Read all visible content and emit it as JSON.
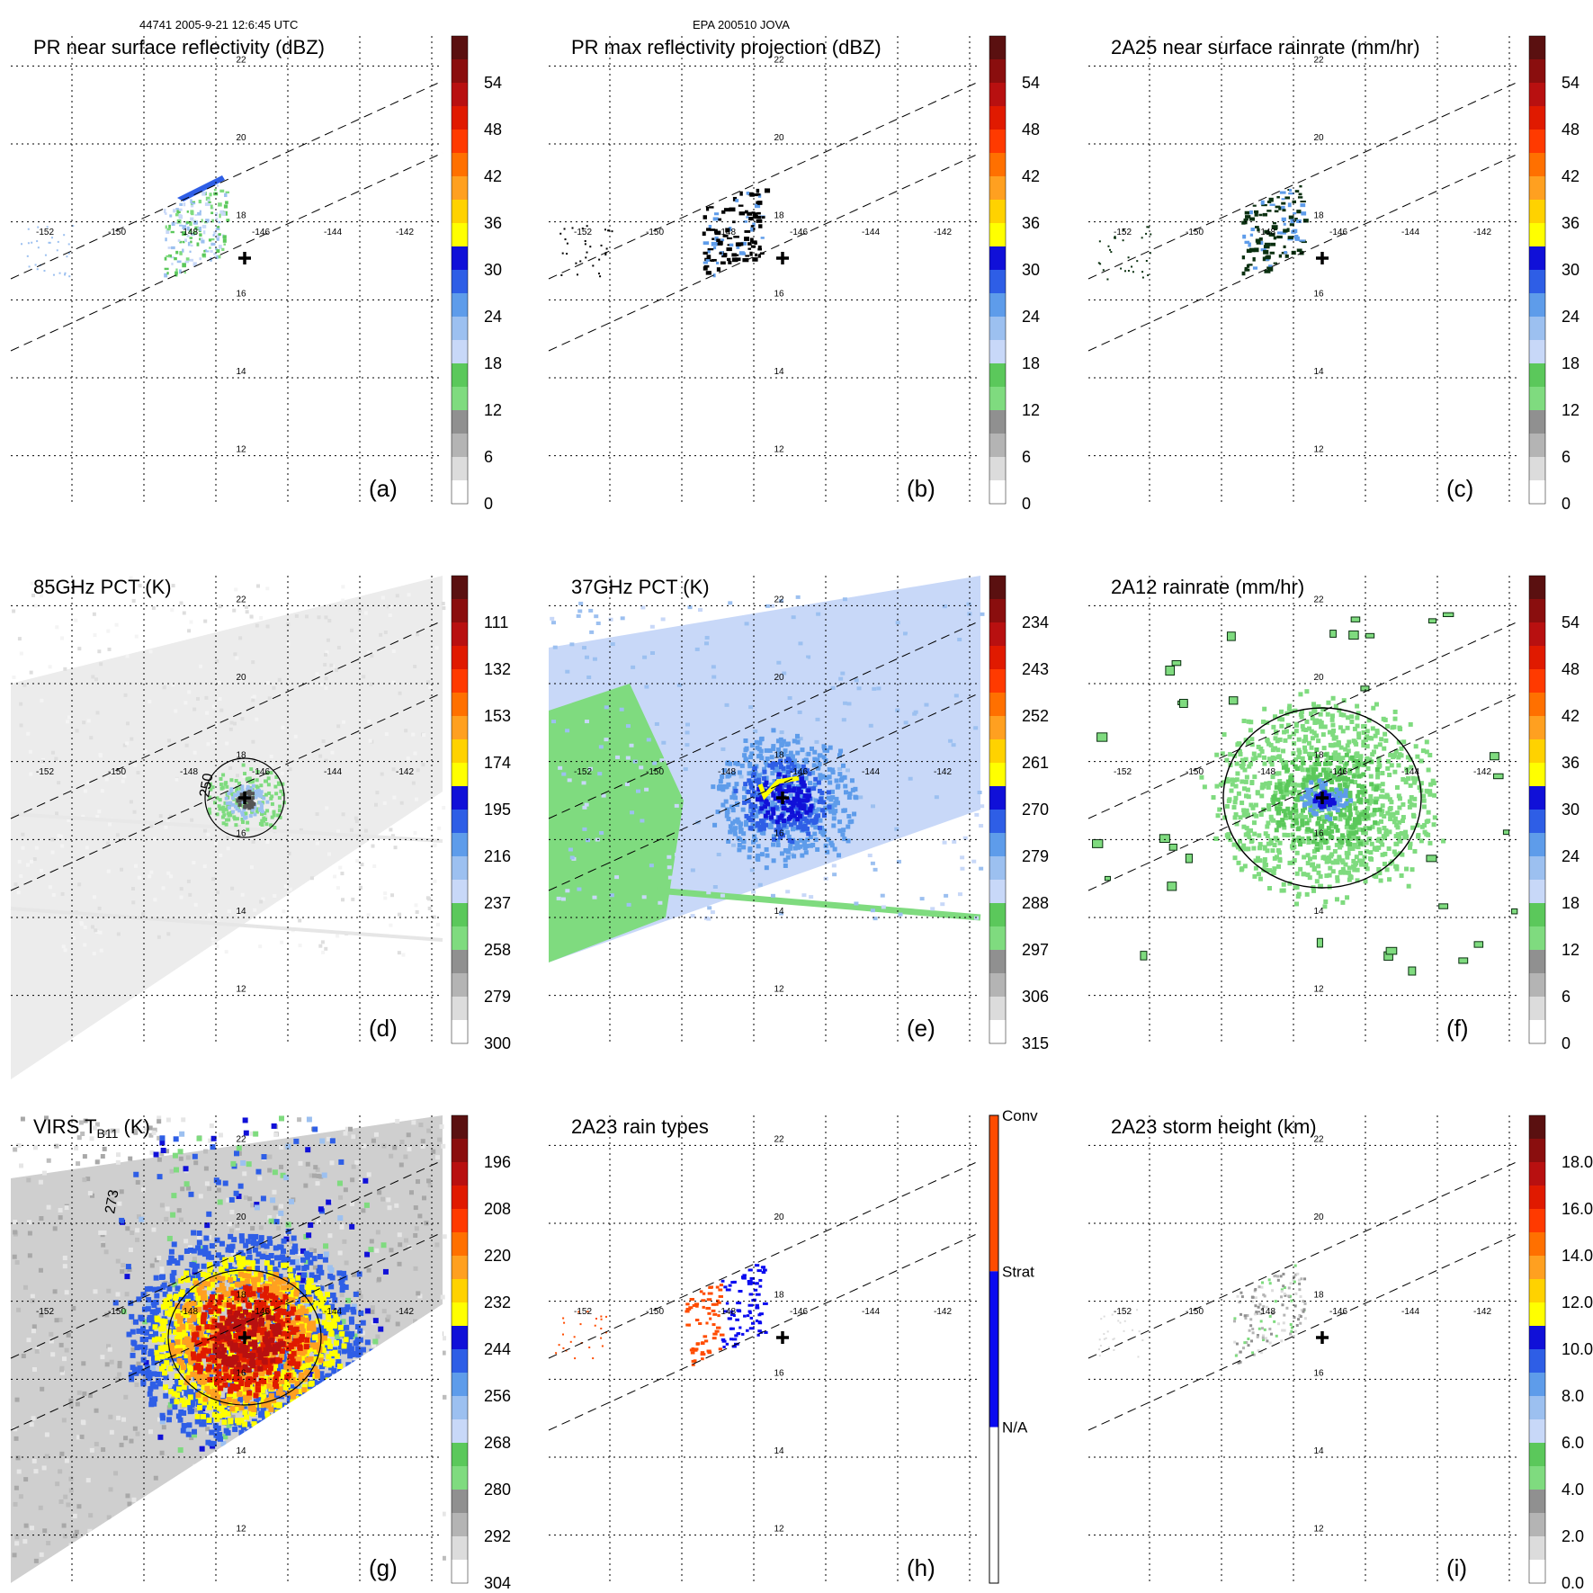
{
  "header": {
    "orbit_time": "44741 2005-9-21 12:6:45 UTC",
    "storm_id": "EPA 200510 JOVA"
  },
  "map": {
    "lon_ticks": [
      "-152",
      "-150",
      "-148",
      "-146",
      "-144",
      "-142"
    ],
    "lat_ticks": [
      "22",
      "20",
      "18",
      "16",
      "14",
      "12"
    ],
    "lon_range": [
      -153,
      -141
    ],
    "lat_range": [
      11,
      23
    ],
    "storm_center": {
      "lon": -146.5,
      "lat": 17.3
    }
  },
  "colors": {
    "palette": [
      "#ffffff",
      "#dcdcdc",
      "#b4b4b4",
      "#909090",
      "#7fdb7f",
      "#5bc85b",
      "#c8d8f8",
      "#9cc0f0",
      "#5e9cea",
      "#2e5ee6",
      "#1010d8",
      "#ffff00",
      "#ffd200",
      "#ffa020",
      "#ff7000",
      "#ff3a00",
      "#e01a00",
      "#b81010",
      "#8a0e0e",
      "#5a1010"
    ],
    "rain_type": {
      "conv": "#ff4c00",
      "strat": "#0a0af0",
      "na": "#ffffff"
    }
  },
  "chart_data": [
    {
      "id": "a",
      "type": "heatmap",
      "title": "PR near surface reflectivity (dBZ)",
      "panel_label": "(a)",
      "colorbar_ticks": [
        "54",
        "48",
        "42",
        "36",
        "30",
        "24",
        "18",
        "12",
        "6",
        "0"
      ],
      "color_range": [
        0,
        60
      ]
    },
    {
      "id": "b",
      "type": "heatmap",
      "title": "PR max reflectivity projection (dBZ)",
      "panel_label": "(b)",
      "colorbar_ticks": [
        "54",
        "48",
        "42",
        "36",
        "30",
        "24",
        "18",
        "12",
        "6",
        "0"
      ],
      "color_range": [
        0,
        60
      ]
    },
    {
      "id": "c",
      "type": "heatmap",
      "title": "2A25 near surface rainrate (mm/hr)",
      "panel_label": "(c)",
      "colorbar_ticks": [
        "54",
        "48",
        "42",
        "36",
        "30",
        "24",
        "18",
        "12",
        "6",
        "0"
      ],
      "color_range": [
        0,
        60
      ]
    },
    {
      "id": "d",
      "type": "heatmap",
      "title": "85GHz PCT (K)",
      "panel_label": "(d)",
      "colorbar_ticks": [
        "111",
        "132",
        "153",
        "174",
        "195",
        "216",
        "237",
        "258",
        "279",
        "300"
      ],
      "color_range": [
        300,
        90
      ],
      "contour_label": "250"
    },
    {
      "id": "e",
      "type": "heatmap",
      "title": "37GHz PCT (K)",
      "panel_label": "(e)",
      "colorbar_ticks": [
        "234",
        "243",
        "252",
        "261",
        "270",
        "279",
        "288",
        "297",
        "306",
        "315"
      ],
      "color_range": [
        315,
        225
      ]
    },
    {
      "id": "f",
      "type": "heatmap",
      "title": "2A12 rainrate (mm/hr)",
      "panel_label": "(f)",
      "colorbar_ticks": [
        "54",
        "48",
        "42",
        "36",
        "30",
        "24",
        "18",
        "12",
        "6",
        "0"
      ],
      "color_range": [
        0,
        60
      ]
    },
    {
      "id": "g",
      "type": "heatmap",
      "title": "VIRS T",
      "title_sub": "B11",
      "title_tail": " (K)",
      "panel_label": "(g)",
      "colorbar_ticks": [
        "196",
        "208",
        "220",
        "232",
        "244",
        "256",
        "268",
        "280",
        "292",
        "304"
      ],
      "color_range": [
        304,
        184
      ],
      "contour_label": "273"
    },
    {
      "id": "h",
      "type": "heatmap",
      "title": "2A23 rain types",
      "panel_label": "(h)",
      "categories": [
        "Conv",
        "Strat",
        "N/A"
      ]
    },
    {
      "id": "i",
      "type": "heatmap",
      "title": "2A23 storm height (km)",
      "panel_label": "(i)",
      "colorbar_ticks": [
        "18.0",
        "16.0",
        "14.0",
        "12.0",
        "10.0",
        "8.0",
        "6.0",
        "4.0",
        "2.0",
        "0.0"
      ],
      "color_range": [
        0,
        20
      ]
    }
  ]
}
